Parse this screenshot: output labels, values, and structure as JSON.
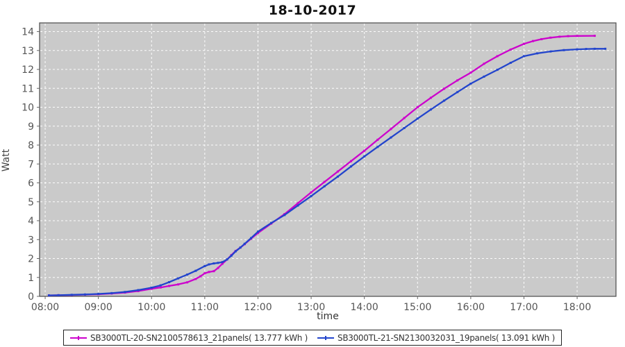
{
  "title": "18-10-2017",
  "colors": {
    "series1": "#cc00cc",
    "series2": "#2244cc",
    "plot_bg": "#cacaca",
    "plot_border": "#555555",
    "grid": "#ffffff",
    "tick_text": "#555555",
    "page_bg": "#ffffff"
  },
  "legend": {
    "items": [
      {
        "label": "SB3000TL-20-SN2100578613_21panels( 13.777 kWh )",
        "color": "#cc00cc"
      },
      {
        "label": "SB3000TL-21-SN2130032031_19panels( 13.091 kWh )",
        "color": "#2244cc"
      }
    ]
  },
  "chart_data": {
    "type": "line",
    "title": "18-10-2017",
    "xlabel": "time",
    "ylabel": "Watt",
    "grid": true,
    "legend_position": "bottom",
    "xlim_hours": [
      7.895,
      18.73
    ],
    "ylim": [
      0,
      14.46
    ],
    "x_ticks_hours": [
      8,
      9,
      10,
      11,
      12,
      13,
      14,
      15,
      16,
      17,
      18
    ],
    "x_tick_labels": [
      "08:00",
      "09:00",
      "10:00",
      "11:00",
      "12:00",
      "13:00",
      "14:00",
      "15:00",
      "16:00",
      "17:00",
      "18:00"
    ],
    "y_ticks": [
      0,
      1,
      2,
      3,
      4,
      5,
      6,
      7,
      8,
      9,
      10,
      11,
      12,
      13,
      14
    ],
    "series": [
      {
        "name": "SB3000TL-20-SN2100578613_21panels( 13.777 kWh )",
        "color": "#cc00cc",
        "total_kwh": 13.777,
        "points": [
          [
            8.07,
            0.05
          ],
          [
            8.25,
            0.06
          ],
          [
            8.5,
            0.07
          ],
          [
            8.75,
            0.09
          ],
          [
            9.0,
            0.11
          ],
          [
            9.25,
            0.15
          ],
          [
            9.5,
            0.2
          ],
          [
            9.75,
            0.28
          ],
          [
            10.0,
            0.4
          ],
          [
            10.17,
            0.47
          ],
          [
            10.33,
            0.55
          ],
          [
            10.5,
            0.63
          ],
          [
            10.67,
            0.74
          ],
          [
            10.83,
            0.92
          ],
          [
            10.92,
            1.06
          ],
          [
            11.0,
            1.22
          ],
          [
            11.08,
            1.29
          ],
          [
            11.17,
            1.33
          ],
          [
            11.25,
            1.5
          ],
          [
            11.33,
            1.72
          ],
          [
            11.42,
            1.95
          ],
          [
            11.5,
            2.18
          ],
          [
            11.58,
            2.4
          ],
          [
            11.67,
            2.58
          ],
          [
            11.75,
            2.76
          ],
          [
            11.87,
            3.05
          ],
          [
            12.0,
            3.35
          ],
          [
            12.25,
            3.85
          ],
          [
            12.5,
            4.35
          ],
          [
            12.75,
            4.92
          ],
          [
            13.0,
            5.5
          ],
          [
            13.25,
            6.05
          ],
          [
            13.5,
            6.6
          ],
          [
            13.75,
            7.15
          ],
          [
            14.0,
            7.7
          ],
          [
            14.25,
            8.28
          ],
          [
            14.5,
            8.85
          ],
          [
            14.75,
            9.43
          ],
          [
            15.0,
            10.0
          ],
          [
            15.25,
            10.5
          ],
          [
            15.5,
            10.98
          ],
          [
            15.75,
            11.42
          ],
          [
            16.0,
            11.83
          ],
          [
            16.25,
            12.3
          ],
          [
            16.5,
            12.7
          ],
          [
            16.75,
            13.05
          ],
          [
            17.0,
            13.35
          ],
          [
            17.17,
            13.5
          ],
          [
            17.33,
            13.6
          ],
          [
            17.5,
            13.68
          ],
          [
            17.67,
            13.73
          ],
          [
            17.83,
            13.76
          ],
          [
            18.0,
            13.77
          ],
          [
            18.33,
            13.777
          ]
        ]
      },
      {
        "name": "SB3000TL-21-SN2130032031_19panels( 13.091 kWh )",
        "color": "#2244cc",
        "total_kwh": 13.091,
        "points": [
          [
            8.07,
            0.05
          ],
          [
            8.25,
            0.06
          ],
          [
            8.5,
            0.08
          ],
          [
            8.75,
            0.1
          ],
          [
            9.0,
            0.13
          ],
          [
            9.25,
            0.17
          ],
          [
            9.5,
            0.23
          ],
          [
            9.75,
            0.33
          ],
          [
            10.0,
            0.46
          ],
          [
            10.17,
            0.58
          ],
          [
            10.33,
            0.75
          ],
          [
            10.5,
            0.95
          ],
          [
            10.67,
            1.15
          ],
          [
            10.83,
            1.35
          ],
          [
            11.0,
            1.6
          ],
          [
            11.08,
            1.69
          ],
          [
            11.17,
            1.74
          ],
          [
            11.25,
            1.77
          ],
          [
            11.33,
            1.81
          ],
          [
            11.42,
            1.95
          ],
          [
            11.5,
            2.15
          ],
          [
            11.58,
            2.38
          ],
          [
            11.67,
            2.58
          ],
          [
            11.75,
            2.78
          ],
          [
            11.87,
            3.08
          ],
          [
            12.0,
            3.42
          ],
          [
            12.25,
            3.88
          ],
          [
            12.5,
            4.3
          ],
          [
            12.75,
            4.8
          ],
          [
            13.0,
            5.3
          ],
          [
            13.25,
            5.82
          ],
          [
            13.5,
            6.33
          ],
          [
            13.75,
            6.87
          ],
          [
            14.0,
            7.4
          ],
          [
            14.25,
            7.9
          ],
          [
            14.5,
            8.4
          ],
          [
            14.75,
            8.9
          ],
          [
            15.0,
            9.4
          ],
          [
            15.25,
            9.88
          ],
          [
            15.5,
            10.35
          ],
          [
            15.75,
            10.8
          ],
          [
            16.0,
            11.25
          ],
          [
            16.25,
            11.62
          ],
          [
            16.5,
            11.98
          ],
          [
            16.75,
            12.35
          ],
          [
            17.0,
            12.7
          ],
          [
            17.25,
            12.85
          ],
          [
            17.5,
            12.95
          ],
          [
            17.75,
            13.02
          ],
          [
            18.0,
            13.06
          ],
          [
            18.17,
            13.08
          ],
          [
            18.33,
            13.09
          ],
          [
            18.53,
            13.091
          ]
        ]
      }
    ]
  }
}
